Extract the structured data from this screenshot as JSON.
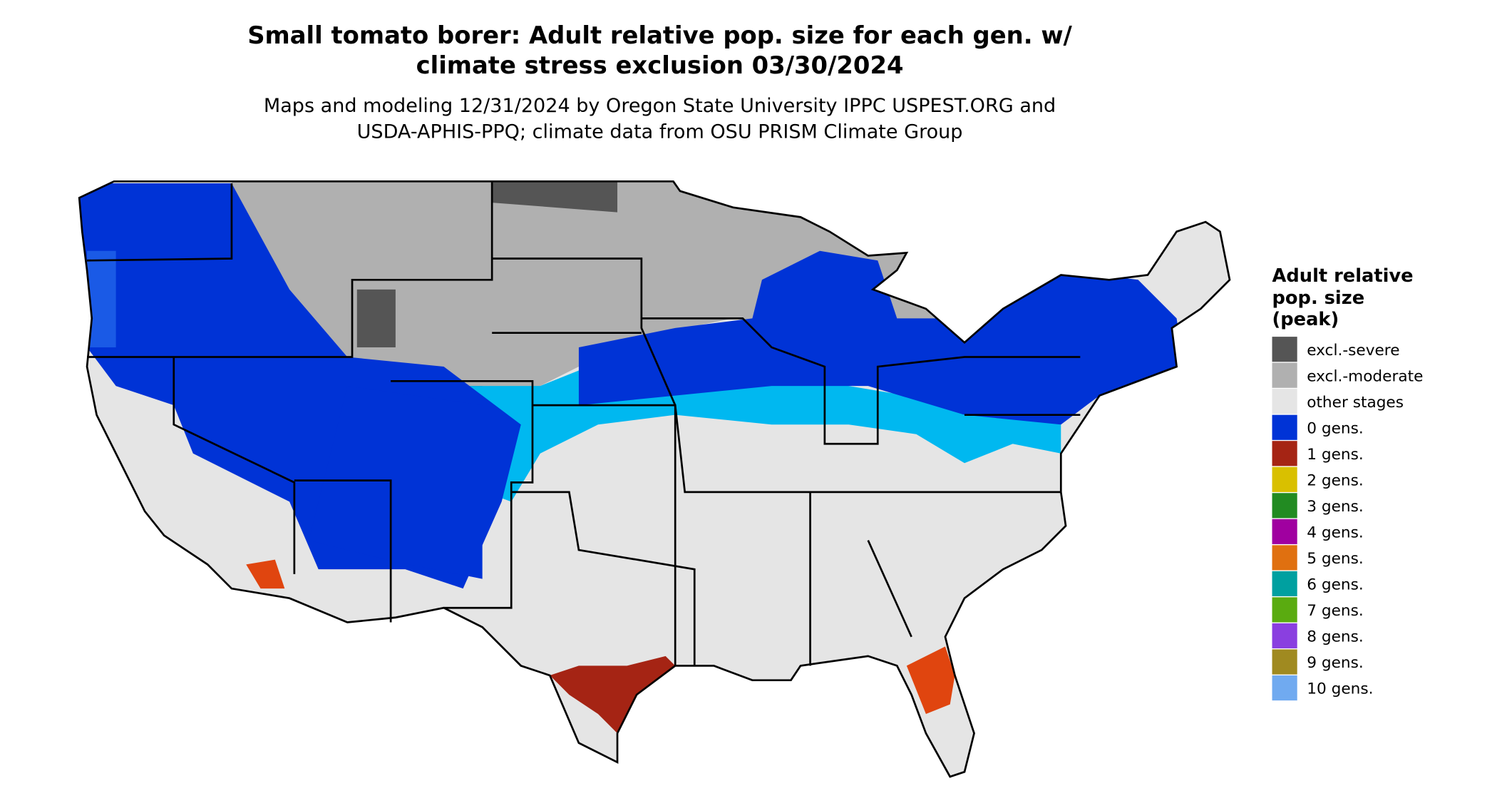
{
  "title": [
    "Small tomato borer: Adult relative pop. size for each gen. w/",
    "climate stress exclusion 03/30/2024"
  ],
  "subtitle": [
    "Maps and modeling 12/31/2024 by Oregon State University IPPC USPEST.ORG and",
    "USDA-APHIS-PPQ; climate data from OSU PRISM Climate Group"
  ],
  "legend": {
    "title": [
      "Adult relative",
      "pop. size",
      "(peak)"
    ],
    "items": [
      {
        "label": "excl.-severe",
        "color": "#555555"
      },
      {
        "label": "excl.-moderate",
        "color": "#b0b0b0"
      },
      {
        "label": "other stages",
        "color": "#e5e5e5"
      },
      {
        "label": "0 gens.",
        "color": "#0033d6"
      },
      {
        "label": "1 gens.",
        "color": "#a52414"
      },
      {
        "label": "2 gens.",
        "color": "#d9c000"
      },
      {
        "label": "3 gens.",
        "color": "#228b22"
      },
      {
        "label": "4 gens.",
        "color": "#a000a0"
      },
      {
        "label": "5 gens.",
        "color": "#e07010"
      },
      {
        "label": "6 gens.",
        "color": "#00a0a0"
      },
      {
        "label": "7 gens.",
        "color": "#5aab10"
      },
      {
        "label": "8 gens.",
        "color": "#8a3fe0"
      },
      {
        "label": "9 gens.",
        "color": "#a08a20"
      },
      {
        "label": "10 gens.",
        "color": "#70aaf0"
      }
    ]
  }
}
